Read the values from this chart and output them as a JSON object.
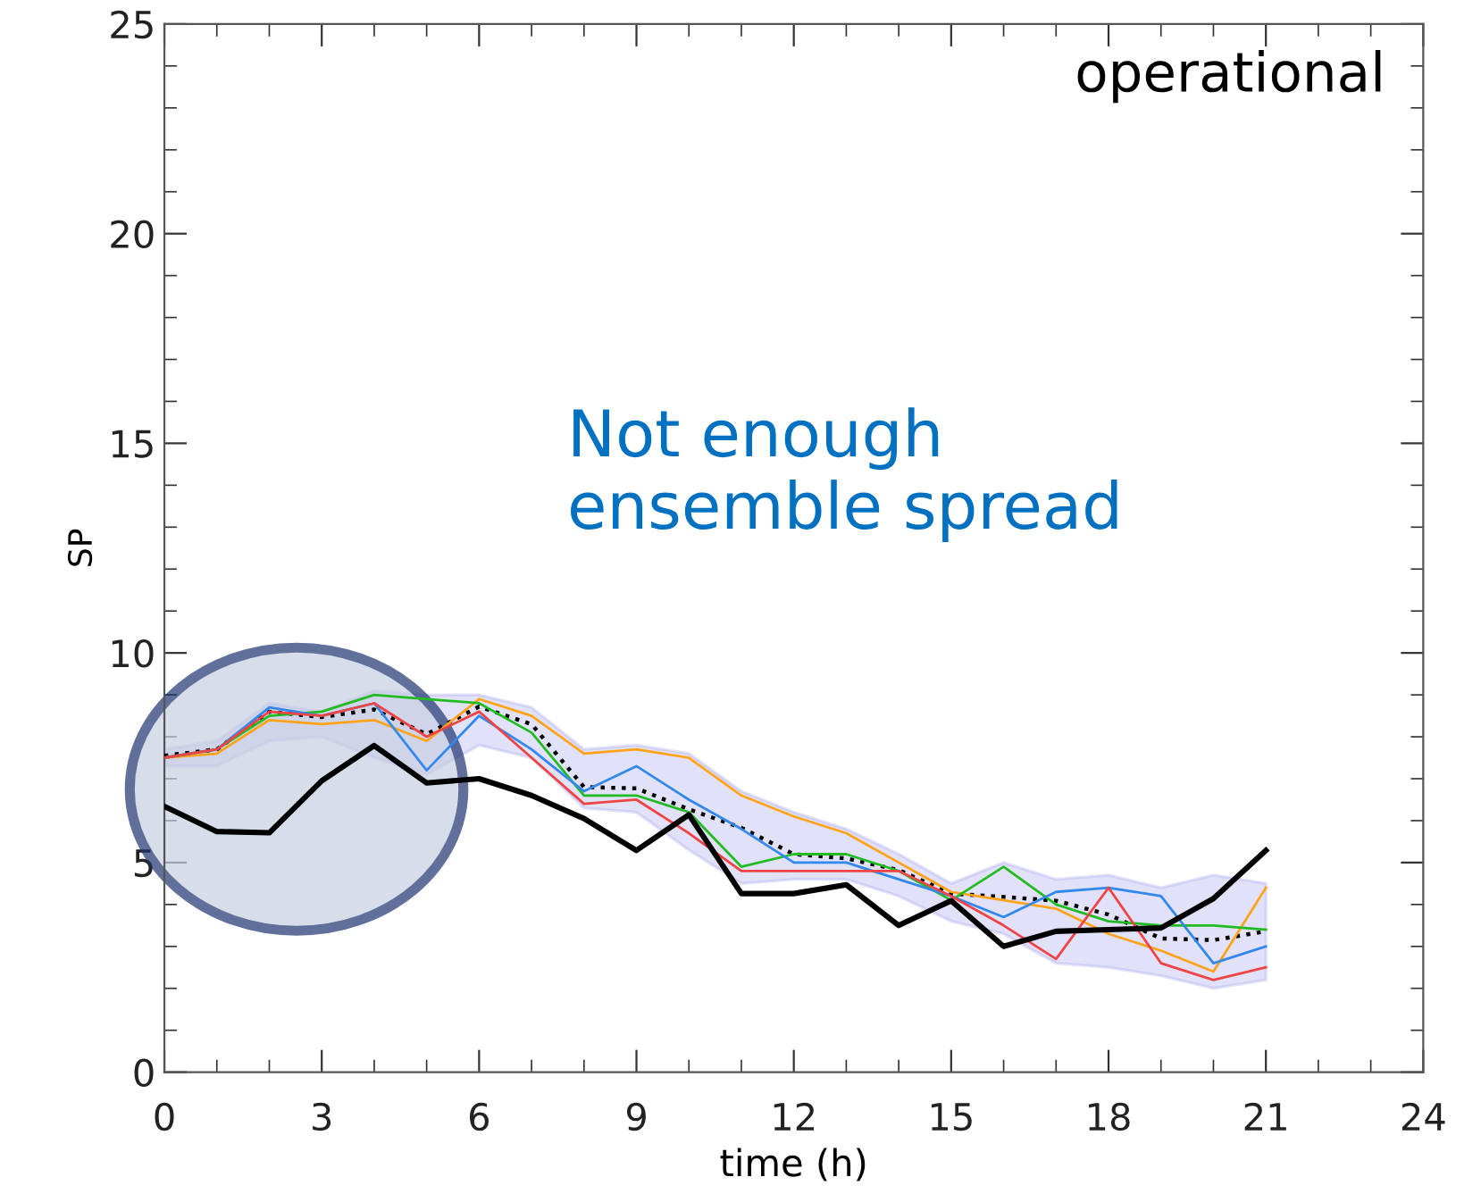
{
  "chart_data": {
    "type": "line",
    "xlabel": "time (h)",
    "ylabel": "SP",
    "annotations": [
      "operational",
      "Not enough\nensemble spread"
    ],
    "x": [
      0,
      1,
      2,
      3,
      4,
      5,
      6,
      7,
      8,
      9,
      10,
      11,
      12,
      13,
      14,
      15,
      16,
      17,
      18,
      19,
      20,
      21
    ],
    "xlim": [
      0,
      24
    ],
    "xticks": [
      0,
      3,
      6,
      9,
      12,
      15,
      18,
      21,
      24
    ],
    "ylim": [
      0,
      25
    ],
    "yticks": [
      0,
      5,
      10,
      15,
      20,
      25
    ],
    "grid": false,
    "legend": false,
    "marker": "none",
    "series": [
      {
        "color": "#000000",
        "values": [
          7.55,
          7.7,
          8.6,
          8.47,
          8.65,
          8.06,
          8.72,
          8.3,
          6.8,
          6.77,
          6.27,
          5.83,
          5.2,
          5.1,
          4.82,
          4.26,
          4.18,
          4.09,
          3.76,
          3.19,
          3.15,
          3.36
        ],
        "line_style": "dotted",
        "lower": [
          7.3,
          7.3,
          7.9,
          8.0,
          7.5,
          7.1,
          7.8,
          7.5,
          6.3,
          6.2,
          5.3,
          4.5,
          4.6,
          4.6,
          4.2,
          3.6,
          3.3,
          2.6,
          2.5,
          2.3,
          2.0,
          2.2
        ],
        "upper": [
          7.7,
          7.9,
          8.8,
          8.6,
          9.1,
          9.0,
          9.0,
          8.7,
          7.7,
          7.8,
          7.6,
          6.7,
          6.2,
          5.8,
          5.2,
          4.5,
          5.0,
          4.6,
          4.7,
          4.4,
          4.7,
          4.5
        ]
      },
      {
        "color": "#ffa31a",
        "values": [
          7.5,
          7.6,
          8.4,
          8.3,
          8.4,
          7.9,
          8.9,
          8.5,
          7.6,
          7.7,
          7.5,
          6.6,
          6.1,
          5.7,
          5.0,
          4.3,
          4.1,
          3.9,
          3.3,
          2.9,
          2.4,
          4.4
        ]
      },
      {
        "color": "#22bb22",
        "values": [
          7.5,
          7.7,
          8.5,
          8.6,
          9.0,
          8.9,
          8.8,
          8.1,
          6.6,
          6.6,
          6.2,
          4.9,
          5.2,
          5.2,
          4.8,
          4.1,
          4.9,
          4.0,
          3.6,
          3.5,
          3.5,
          3.4
        ]
      },
      {
        "color": "#3388ee",
        "values": [
          7.5,
          7.7,
          8.7,
          8.5,
          8.8,
          7.2,
          8.5,
          7.7,
          6.7,
          7.3,
          6.5,
          5.8,
          5.0,
          5.0,
          4.6,
          4.2,
          3.7,
          4.3,
          4.4,
          4.2,
          2.6,
          3.0
        ]
      },
      {
        "color": "#ee4444",
        "values": [
          7.5,
          7.7,
          8.6,
          8.5,
          8.8,
          8.0,
          8.6,
          7.5,
          6.4,
          6.5,
          5.7,
          4.8,
          4.8,
          4.8,
          4.8,
          4.2,
          3.5,
          2.7,
          4.4,
          2.6,
          2.2,
          2.5
        ]
      },
      {
        "color": "#000000",
        "values": [
          6.34,
          5.74,
          5.71,
          6.95,
          7.79,
          6.9,
          7.0,
          6.6,
          6.05,
          5.29,
          6.14,
          4.26,
          4.26,
          4.47,
          3.5,
          4.09,
          3.0,
          3.36,
          3.4,
          3.44,
          4.14,
          5.29
        ]
      }
    ]
  }
}
